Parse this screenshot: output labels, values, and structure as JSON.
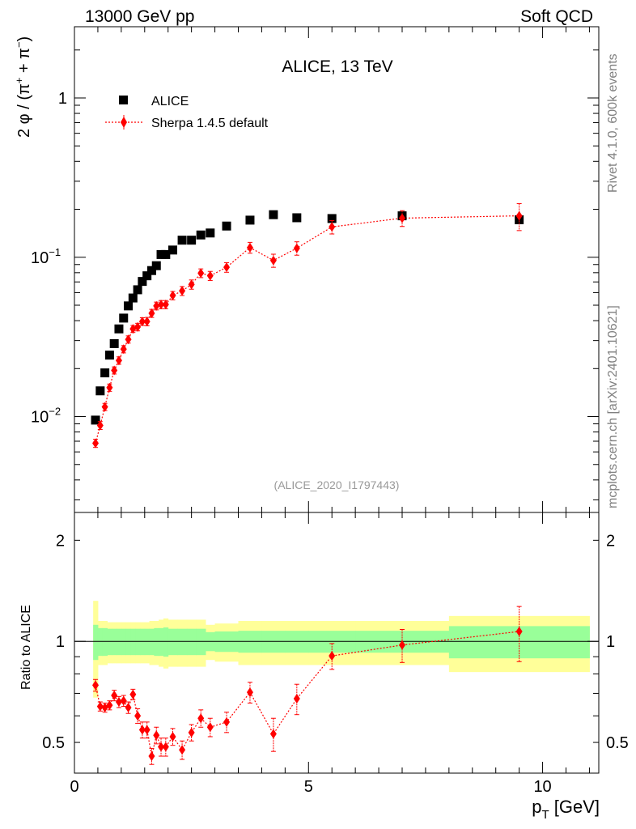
{
  "header": {
    "left": "13000 GeV pp",
    "right": "Soft QCD"
  },
  "side_labels": {
    "rivet": "Rivet 4.1.0,  600k events",
    "mcplots": "mcplots.cern.ch [arXiv:2401.10621]"
  },
  "colors": {
    "data": "#000000",
    "mc": "#ff0000",
    "band_inner": "#99ff99",
    "band_outer": "#ffff99",
    "analysis_id": "#999999"
  },
  "chart_data": [
    {
      "type": "scatter",
      "panel": "main",
      "title": "ALICE, 13 TeV",
      "analysis_id": "(ALICE_2020_I1797443)",
      "xlabel": "",
      "ylabel": "2 φ / (π⁺ + π⁻)",
      "ylabel_parts": {
        "pre": "2 φ / (π",
        "sup1": "+",
        "mid": " + π",
        "sup2": "−",
        "post": ")"
      },
      "yscale": "log",
      "xlim": [
        0,
        11.2
      ],
      "ylim": [
        0.0025,
        2.8
      ],
      "yticks": [
        {
          "value": 0.01,
          "base": "10",
          "exp": "−2"
        },
        {
          "value": 0.1,
          "base": "10",
          "exp": "−1"
        },
        {
          "value": 1,
          "label": "1"
        }
      ],
      "legend": {
        "position": "top-left",
        "entries": [
          "ALICE",
          "Sherpa 1.4.5 default"
        ]
      },
      "series": [
        {
          "name": "ALICE",
          "marker": "square",
          "x": [
            0.45,
            0.55,
            0.65,
            0.75,
            0.85,
            0.95,
            1.05,
            1.15,
            1.25,
            1.35,
            1.45,
            1.55,
            1.65,
            1.75,
            1.85,
            1.95,
            2.1,
            2.3,
            2.5,
            2.7,
            2.9,
            3.25,
            3.75,
            4.25,
            4.75,
            5.5,
            7.0,
            9.5
          ],
          "y": [
            0.0095,
            0.0145,
            0.0188,
            0.0243,
            0.0287,
            0.0355,
            0.0415,
            0.0495,
            0.0555,
            0.0625,
            0.0705,
            0.0765,
            0.0825,
            0.0885,
            0.104,
            0.104,
            0.111,
            0.128,
            0.128,
            0.138,
            0.142,
            0.157,
            0.171,
            0.185,
            0.177,
            0.175,
            0.182,
            0.172
          ]
        },
        {
          "name": "Sherpa 1.4.5 default",
          "marker": "diamond",
          "x": [
            0.45,
            0.55,
            0.65,
            0.75,
            0.85,
            0.95,
            1.05,
            1.15,
            1.25,
            1.35,
            1.45,
            1.55,
            1.65,
            1.75,
            1.85,
            1.95,
            2.1,
            2.3,
            2.5,
            2.7,
            2.9,
            3.25,
            3.75,
            4.25,
            4.75,
            5.5,
            7.0,
            9.5
          ],
          "y": [
            0.0068,
            0.0088,
            0.0115,
            0.0152,
            0.0195,
            0.0225,
            0.0265,
            0.0305,
            0.0355,
            0.0365,
            0.0395,
            0.0395,
            0.0445,
            0.0495,
            0.0505,
            0.0505,
            0.0575,
            0.0615,
            0.0675,
            0.0795,
            0.0765,
            0.0865,
            0.115,
            0.0955,
            0.114,
            0.155,
            0.176,
            0.182
          ],
          "yerr": [
            0.0004,
            0.0005,
            0.0006,
            0.0008,
            0.001,
            0.0012,
            0.0014,
            0.0016,
            0.0018,
            0.002,
            0.0022,
            0.0024,
            0.0026,
            0.0028,
            0.003,
            0.003,
            0.0035,
            0.004,
            0.0045,
            0.005,
            0.005,
            0.006,
            0.009,
            0.009,
            0.011,
            0.015,
            0.02,
            0.035
          ]
        }
      ]
    },
    {
      "type": "scatter",
      "panel": "ratio",
      "xlabel": "p_T [GeV]",
      "xlabel_parts": {
        "p": "p",
        "sub": "T",
        "unit": " [GeV]"
      },
      "ylabel": "Ratio to ALICE",
      "yscale": "log",
      "xlim": [
        0,
        11.2
      ],
      "ylim": [
        0.405,
        2.42
      ],
      "yticks": [
        0.5,
        1,
        2
      ],
      "xticks": [
        0,
        5,
        10
      ],
      "reference_line": 1,
      "bands": {
        "edges": [
          0.4,
          0.5,
          0.6,
          0.7,
          0.8,
          0.9,
          1.0,
          1.1,
          1.2,
          1.3,
          1.4,
          1.5,
          1.6,
          1.7,
          1.8,
          1.9,
          2.0,
          2.2,
          2.4,
          2.6,
          2.8,
          3.0,
          3.5,
          4.0,
          4.5,
          5.0,
          6.0,
          8.0,
          11.0
        ],
        "inner": [
          0.12,
          0.095,
          0.095,
          0.09,
          0.09,
          0.09,
          0.09,
          0.09,
          0.09,
          0.09,
          0.09,
          0.09,
          0.09,
          0.095,
          0.095,
          0.1,
          0.09,
          0.09,
          0.09,
          0.09,
          0.065,
          0.07,
          0.075,
          0.075,
          0.075,
          0.075,
          0.075,
          0.11,
          0.11
        ],
        "outer": [
          0.32,
          0.15,
          0.15,
          0.14,
          0.14,
          0.14,
          0.14,
          0.14,
          0.14,
          0.14,
          0.14,
          0.14,
          0.15,
          0.15,
          0.16,
          0.17,
          0.16,
          0.16,
          0.16,
          0.16,
          0.12,
          0.13,
          0.15,
          0.15,
          0.15,
          0.15,
          0.15,
          0.19,
          0.19
        ]
      },
      "series": [
        {
          "name": "Sherpa 1.4.5 default / ALICE",
          "marker": "diamond",
          "x": [
            0.45,
            0.55,
            0.65,
            0.75,
            0.85,
            0.95,
            1.05,
            1.15,
            1.25,
            1.35,
            1.45,
            1.55,
            1.65,
            1.75,
            1.85,
            1.95,
            2.1,
            2.3,
            2.5,
            2.7,
            2.9,
            3.25,
            3.75,
            4.25,
            4.75,
            5.5,
            7.0,
            9.5
          ],
          "y": [
            0.74,
            0.64,
            0.635,
            0.645,
            0.69,
            0.66,
            0.665,
            0.635,
            0.695,
            0.6,
            0.545,
            0.545,
            0.455,
            0.525,
            0.485,
            0.485,
            0.52,
            0.475,
            0.535,
            0.59,
            0.555,
            0.575,
            0.705,
            0.53,
            0.675,
            0.905,
            0.975,
            1.07
          ],
          "yerr": [
            0.03,
            0.02,
            0.02,
            0.02,
            0.025,
            0.025,
            0.025,
            0.025,
            0.025,
            0.03,
            0.03,
            0.03,
            0.025,
            0.03,
            0.03,
            0.03,
            0.03,
            0.03,
            0.03,
            0.035,
            0.035,
            0.04,
            0.05,
            0.06,
            0.07,
            0.08,
            0.11,
            0.2
          ]
        }
      ]
    }
  ]
}
